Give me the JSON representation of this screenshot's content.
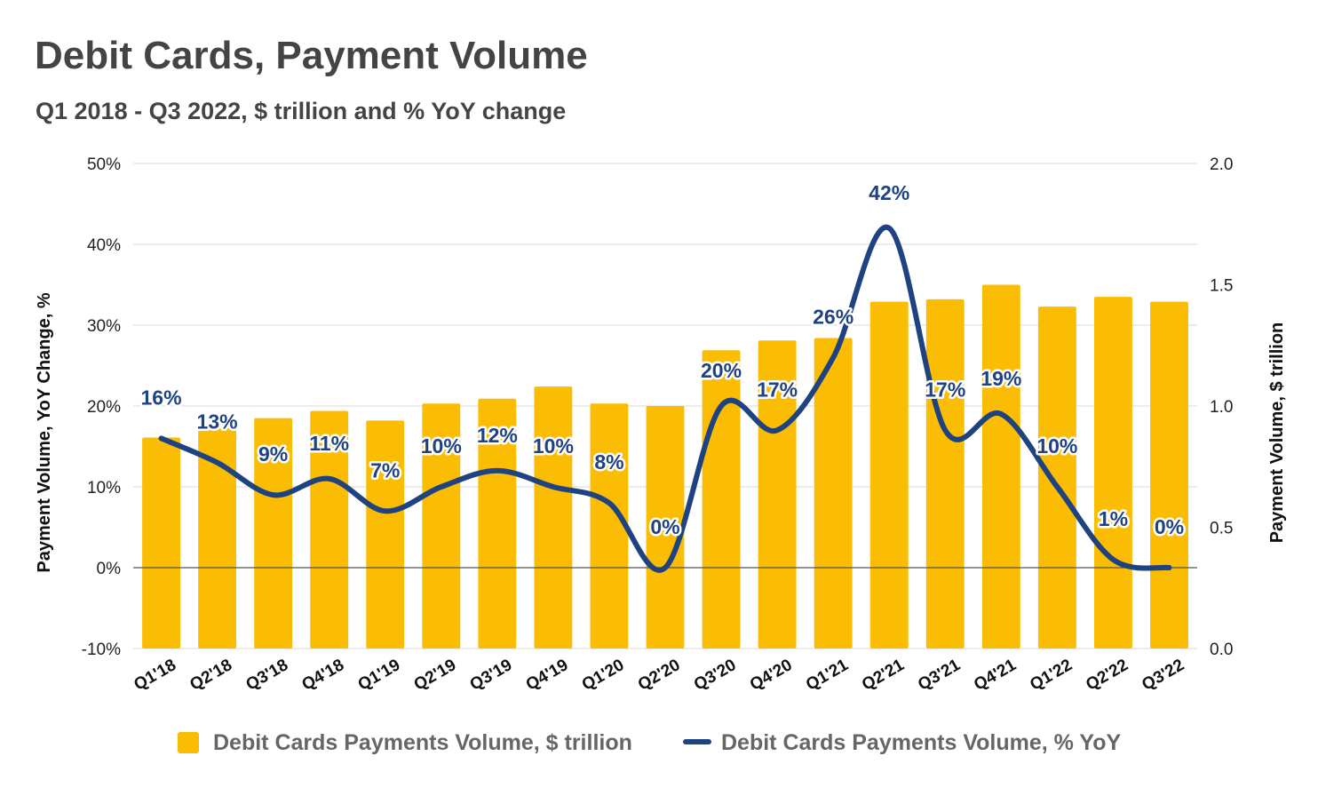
{
  "title": "Debit Cards, Payment Volume",
  "subtitle": "Q1 2018 - Q3 2022, $ trillion and % YoY change",
  "colors": {
    "bar": "#FBBC04",
    "line": "#1F4280",
    "grid": "#d9d9d9",
    "zero_line": "#555555"
  },
  "chart_data": {
    "type": "bar",
    "title": "Debit Cards, Payment Volume",
    "subtitle": "Q1 2018 - Q3 2022, $ trillion and % YoY change",
    "categories": [
      "Q1'18",
      "Q2'18",
      "Q3'18",
      "Q4'18",
      "Q1'19",
      "Q2'19",
      "Q3'19",
      "Q4'19",
      "Q1'20",
      "Q2'20",
      "Q3'20",
      "Q4'20",
      "Q1'21",
      "Q2'21",
      "Q3'21",
      "Q4'21",
      "Q1'22",
      "Q2'22",
      "Q3'22"
    ],
    "series": [
      {
        "name": "Debit Cards Payments Volume, $ trillion",
        "type": "bar",
        "axis": "right",
        "values": [
          0.87,
          0.91,
          0.95,
          0.98,
          0.94,
          1.01,
          1.03,
          1.08,
          1.01,
          1.0,
          1.23,
          1.27,
          1.28,
          1.43,
          1.44,
          1.5,
          1.41,
          1.45,
          1.43
        ]
      },
      {
        "name": "Debit Cards Payments Volume, % YoY",
        "type": "line",
        "axis": "left",
        "values": [
          16,
          13,
          9,
          11,
          7,
          10,
          12,
          10,
          8,
          0,
          20,
          17,
          26,
          42,
          17,
          19,
          10,
          1,
          0
        ],
        "labels": [
          "16%",
          "13%",
          "9%",
          "11%",
          "7%",
          "10%",
          "12%",
          "10%",
          "8%",
          "0%",
          "20%",
          "17%",
          "26%",
          "42%",
          "17%",
          "19%",
          "10%",
          "1%",
          "0%"
        ]
      }
    ],
    "left_axis": {
      "label": "Payment Volume, YoY Change, %",
      "range": [
        -10,
        50
      ],
      "ticks": [
        -10,
        0,
        10,
        20,
        30,
        40,
        50
      ],
      "tick_labels": [
        "-10%",
        "0%",
        "10%",
        "20%",
        "30%",
        "40%",
        "50%"
      ]
    },
    "right_axis": {
      "label": "Payment Volume, $ trillion",
      "range": [
        0,
        2
      ],
      "ticks": [
        0,
        0.5,
        1,
        1.5,
        2
      ],
      "tick_labels": [
        "0.0",
        "0.5",
        "1.0",
        "1.5",
        "2.0"
      ]
    },
    "grid": true,
    "legend": "bottom"
  }
}
